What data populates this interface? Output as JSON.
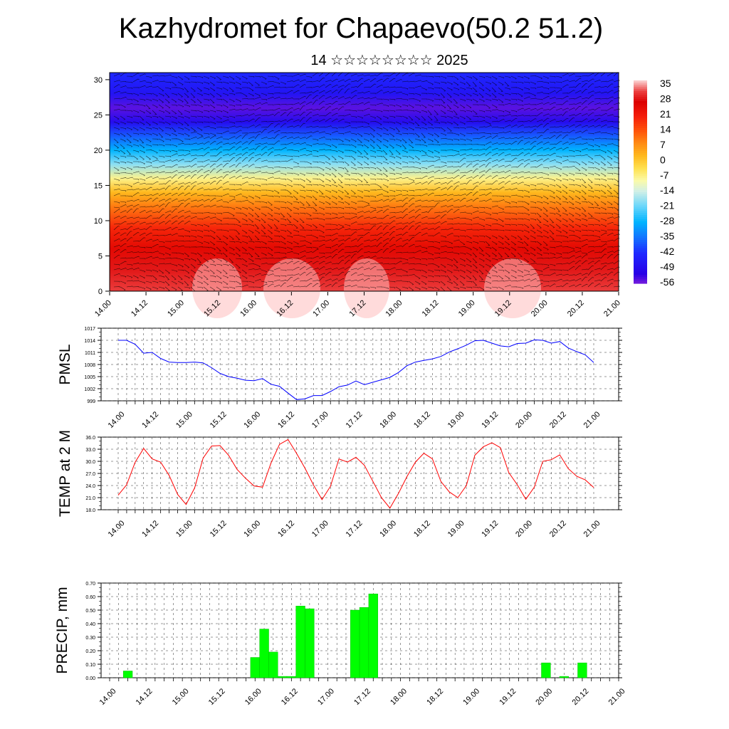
{
  "title": "Kazhydromet for Chapaevo(50.2 51.2)",
  "subtitle": "14 ☆☆☆☆☆☆☆☆ 2025",
  "time_labels": [
    "14.00",
    "14.12",
    "15.00",
    "15.12",
    "16.00",
    "16.12",
    "17.00",
    "17.12",
    "18.00",
    "18.12",
    "19.00",
    "19.12",
    "20.00",
    "20.12",
    "21.00"
  ],
  "colors": {
    "pmsl": "#0000ff",
    "temp": "#ff0000",
    "precip": "#00ff00"
  },
  "chart_data": [
    {
      "type": "heatmap",
      "name": "temperature-height-section",
      "y_ticks": [
        "0",
        "5",
        "10",
        "15",
        "20",
        "25",
        "30"
      ],
      "ylim": [
        0,
        31
      ],
      "colorbar_labels": [
        "35",
        "28",
        "21",
        "14",
        "7",
        "0",
        "-7",
        "-14",
        "-21",
        "-28",
        "-35",
        "-42",
        "-49",
        "-56"
      ],
      "colorbar_range": [
        -60,
        38
      ],
      "temperature_profile_by_height": [
        [
          0,
          33
        ],
        [
          3,
          30
        ],
        [
          6,
          26
        ],
        [
          9,
          20
        ],
        [
          12,
          10
        ],
        [
          14,
          2
        ],
        [
          16,
          -8
        ],
        [
          18,
          -20
        ],
        [
          20,
          -30
        ],
        [
          22,
          -40
        ],
        [
          24,
          -52
        ],
        [
          26,
          -58
        ],
        [
          28,
          -50
        ],
        [
          31,
          -45
        ]
      ],
      "note_features": "wind barbs overlaid"
    },
    {
      "type": "line",
      "ylabel": "PMSL",
      "y_ticks": [
        "1017",
        "1014",
        "1011",
        "1008",
        "1005",
        "1002",
        "999"
      ],
      "ylim": [
        999,
        1017
      ],
      "x_hours": [
        0,
        3,
        6,
        9,
        12,
        15,
        18,
        21,
        24,
        27,
        30,
        33,
        36,
        39,
        42,
        45,
        48,
        51,
        54,
        57,
        60,
        63,
        66,
        69,
        72,
        75,
        78,
        81,
        84,
        87,
        90,
        93,
        96,
        99,
        102,
        105,
        108,
        111,
        114,
        117,
        120,
        123,
        126,
        129,
        132,
        135,
        138,
        141,
        144,
        147,
        150,
        153,
        156,
        159,
        162,
        165,
        168
      ],
      "values": [
        1014,
        1014,
        1013,
        1010.8,
        1011,
        1009.5,
        1008.6,
        1008.5,
        1008.5,
        1008.6,
        1008.4,
        1007.2,
        1005.8,
        1005,
        1004.6,
        1004.1,
        1004,
        1004.5,
        1003.1,
        1002.6,
        1000.9,
        999.3,
        999.5,
        1000.3,
        1000.3,
        1001.3,
        1002.5,
        1002.9,
        1003.9,
        1003,
        1003.6,
        1004.2,
        1004.8,
        1006,
        1007.7,
        1008.6,
        1009,
        1009.4,
        1010,
        1011.1,
        1011.9,
        1012.8,
        1013.9,
        1014,
        1013.3,
        1012.6,
        1012.4,
        1013.2,
        1013.3,
        1014.1,
        1014,
        1013.3,
        1013.7,
        1012.1,
        1011.2,
        1010.4,
        1008.5
      ]
    },
    {
      "type": "line",
      "ylabel": "TEMP at 2 M",
      "y_ticks": [
        "36.0",
        "33.0",
        "30.0",
        "27.0",
        "24.0",
        "21.0",
        "18.0"
      ],
      "ylim": [
        18,
        36
      ],
      "x_hours": [
        0,
        3,
        6,
        9,
        12,
        15,
        18,
        21,
        24,
        27,
        30,
        33,
        36,
        39,
        42,
        45,
        48,
        51,
        54,
        57,
        60,
        63,
        66,
        69,
        72,
        75,
        78,
        81,
        84,
        87,
        90,
        93,
        96,
        99,
        102,
        105,
        108,
        111,
        114,
        117,
        120,
        123,
        126,
        129,
        132,
        135,
        138,
        141,
        144,
        147,
        150,
        153,
        156,
        159,
        162,
        165,
        168
      ],
      "values": [
        21.6,
        24.2,
        29.8,
        33.2,
        30.6,
        29.8,
        26.5,
        21.8,
        19.3,
        23.4,
        30.8,
        33.8,
        33.9,
        31.5,
        28.0,
        25.8,
        23.9,
        23.6,
        29.6,
        34.2,
        35.4,
        32.0,
        28.3,
        24.1,
        20.5,
        23.8,
        30.6,
        29.8,
        31.0,
        29.0,
        25.0,
        21.0,
        18.4,
        22.0,
        26.2,
        29.8,
        32.0,
        30.6,
        25.0,
        22.4,
        21.0,
        24.0,
        31.5,
        33.6,
        34.6,
        33.4,
        27.2,
        24.2,
        20.6,
        23.6,
        30.0,
        30.4,
        31.6,
        28.2,
        26.3,
        25.4,
        23.5
      ]
    },
    {
      "type": "bar",
      "ylabel": "PRECIP, mm",
      "y_ticks": [
        "0.70",
        "0.60",
        "0.50",
        "0.40",
        "0.30",
        "0.20",
        "0.10",
        "0.00"
      ],
      "ylim": [
        0,
        0.7
      ],
      "x_hours": [
        0,
        3,
        6,
        9,
        12,
        15,
        18,
        21,
        24,
        27,
        30,
        33,
        36,
        39,
        42,
        45,
        48,
        51,
        54,
        57,
        60,
        63,
        66,
        69,
        72,
        75,
        78,
        81,
        84,
        87,
        90,
        93,
        96,
        99,
        102,
        105,
        108,
        111,
        114,
        117,
        120,
        123,
        126,
        129,
        132,
        135,
        138,
        141,
        144,
        147,
        150,
        153,
        156,
        159,
        162,
        165
      ],
      "values": [
        0,
        0,
        0.05,
        0,
        0,
        0,
        0,
        0,
        0,
        0,
        0,
        0,
        0,
        0,
        0,
        0,
        0.15,
        0.36,
        0.19,
        0.01,
        0.01,
        0.53,
        0.51,
        0,
        0,
        0,
        0,
        0.5,
        0.52,
        0.62,
        0,
        0,
        0,
        0,
        0,
        0,
        0,
        0,
        0,
        0,
        0,
        0,
        0,
        0,
        0,
        0,
        0,
        0,
        0.11,
        0,
        0.01,
        0,
        0.11,
        0,
        0,
        0
      ]
    }
  ]
}
